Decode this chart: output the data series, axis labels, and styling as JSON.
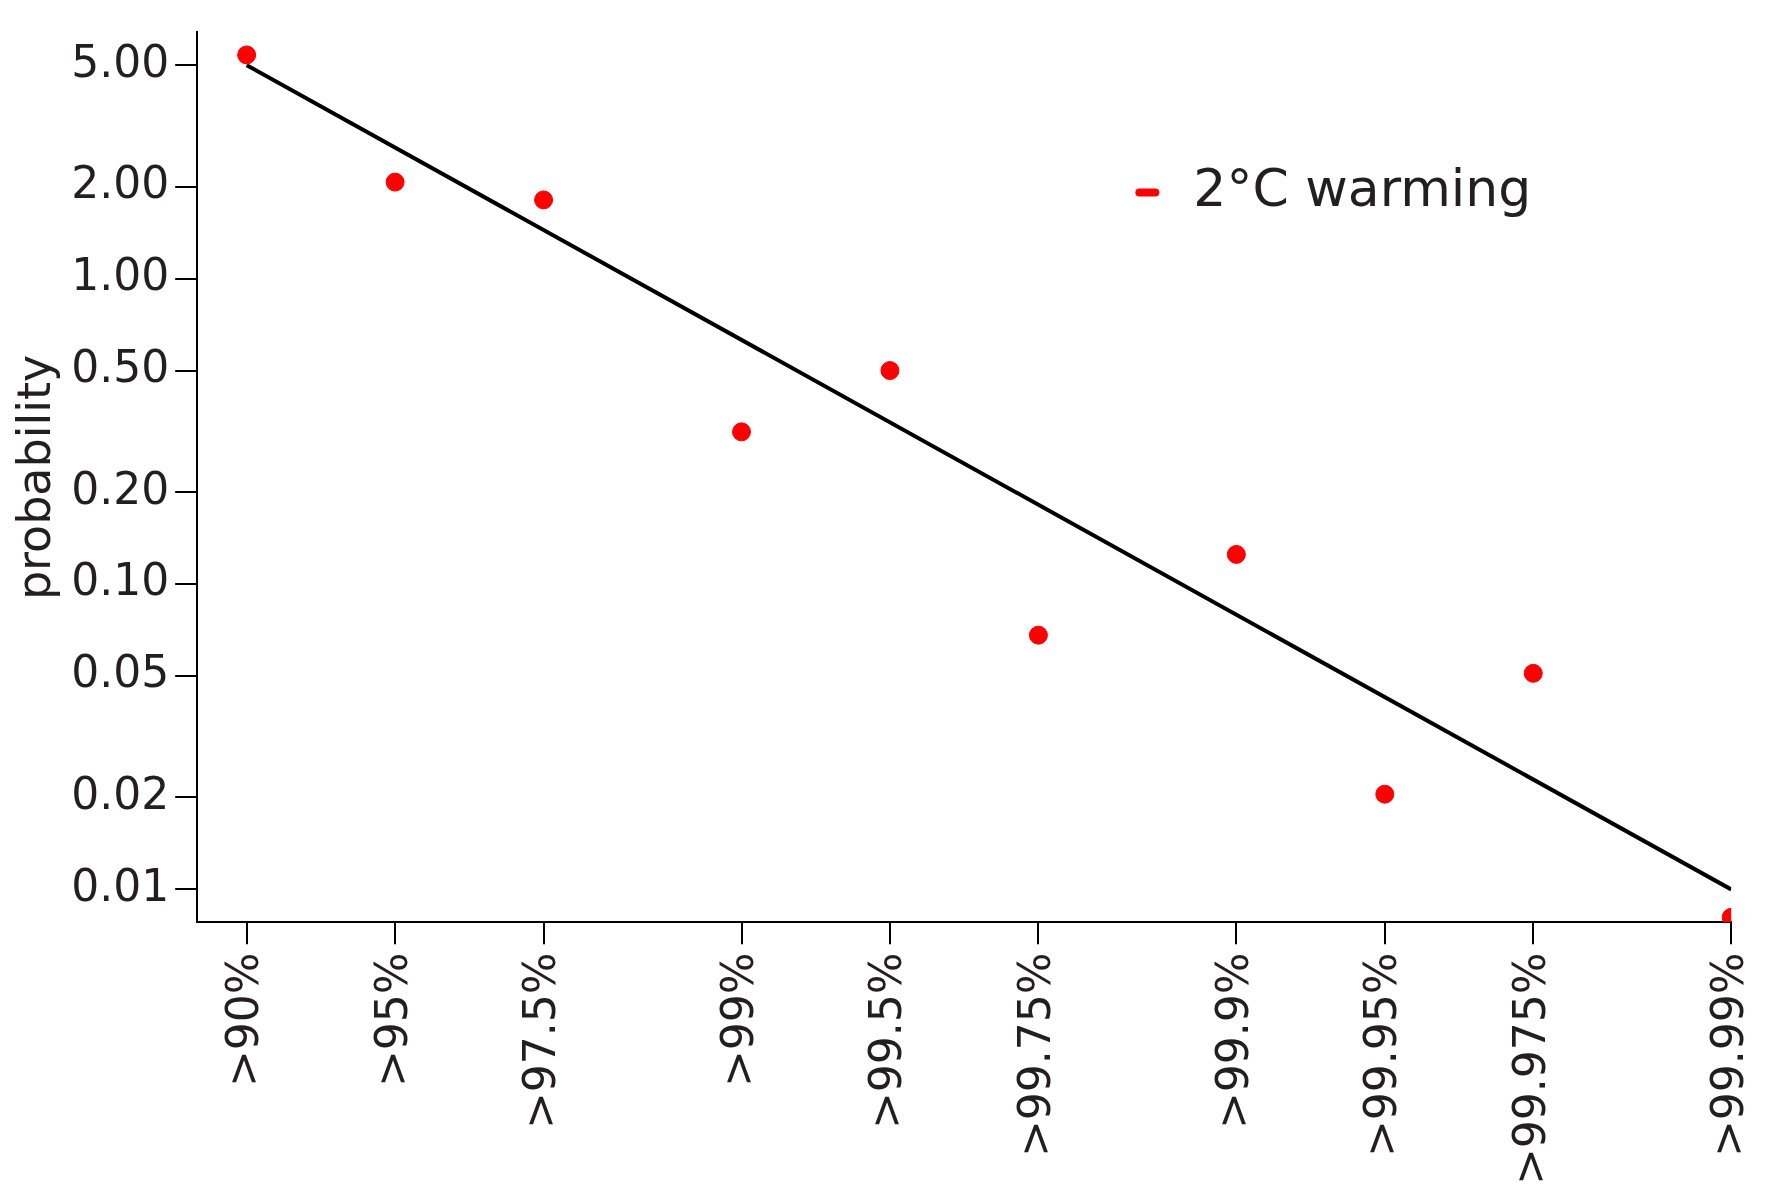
{
  "chart_data": {
    "type": "scatter",
    "ylabel": "probability",
    "log": "y",
    "grid": false,
    "legend": "top right",
    "categories": [
      null,
      ">90%",
      null,
      null,
      ">95%",
      null,
      null,
      ">97.5%",
      null,
      null,
      null,
      ">99%",
      null,
      null,
      ">99.5%",
      null,
      null,
      ">99.75%",
      null,
      null,
      null,
      ">99.9%",
      null,
      null,
      ">99.95%",
      null,
      null,
      ">99.975%",
      null,
      null,
      null,
      ">99.99%"
    ],
    "ylim": [
      0.0078,
      6.4
    ],
    "yticks": [
      {
        "value": 5,
        "label": "5.00"
      },
      {
        "value": 2,
        "label": "2.00"
      },
      {
        "value": 1,
        "label": "1.00"
      },
      {
        "value": 0.5,
        "label": "0.50"
      },
      {
        "value": 0.2,
        "label": "0.20"
      },
      {
        "value": 0.1,
        "label": "0.10"
      },
      {
        "value": 0.05,
        "label": "0.05"
      },
      {
        "value": 0.02,
        "label": "0.02"
      },
      {
        "value": 0.01,
        "label": "0.01"
      }
    ],
    "series": [
      {
        "type": "line",
        "marker": "none",
        "color": "#000000",
        "x": [
          ">90%",
          ">99.99%"
        ],
        "values": [
          5,
          0.01
        ]
      },
      {
        "name": "2°C warming",
        "marker": "circle",
        "color": "#ff0000",
        "x": [
          ">90%",
          ">95%",
          ">97.5%",
          ">99%",
          ">99.5%",
          ">99.75%",
          ">99.9%",
          ">99.95%",
          ">99.975%",
          ">99.99%"
        ],
        "values": [
          5.4,
          2.07,
          1.81,
          0.315,
          0.5,
          0.068,
          0.125,
          0.0205,
          0.051,
          0.0081
        ]
      }
    ]
  }
}
